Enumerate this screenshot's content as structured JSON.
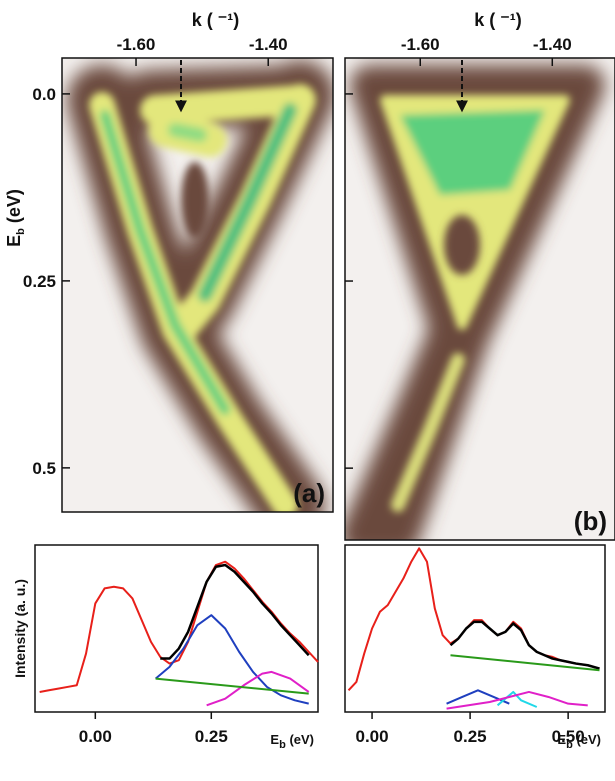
{
  "chart_data": [
    {
      "type": "image",
      "x_label": "k ( ⁻¹)",
      "y_label": {
        "main": "E",
        "sub": "b",
        "unit": " (eV)"
      },
      "panel_label": "(a)",
      "xlim": [
        -1.712,
        -1.302
      ],
      "ylim": [
        -0.048,
        0.559
      ],
      "xticks": [
        {
          "value": -1.6,
          "label": "-1.60"
        },
        {
          "value": -1.4,
          "label": "-1.40"
        }
      ],
      "yticks": [
        {
          "value": 0,
          "label": "0.0"
        },
        0.25,
        0.5
      ]
    },
    {
      "type": "image",
      "x_label": "k ( ⁻¹)",
      "panel_label": "(b)",
      "xlim": [
        -1.714,
        -1.305
      ],
      "ylim": [
        -0.048,
        0.596
      ],
      "xticks": [
        {
          "value": -1.6,
          "label": "-1.60"
        },
        {
          "value": -1.4,
          "label": "-1.40"
        }
      ],
      "yticks": [
        0,
        0.25,
        0.5
      ]
    },
    {
      "type": "line",
      "x_label": {
        "main": "E",
        "sub": "b",
        "unit": " (eV)"
      },
      "y_label": "Intensity (a. u.)",
      "xlim": [
        -0.13,
        0.48
      ],
      "ylim": [
        0,
        1
      ],
      "xticks": [
        {
          "value": 0,
          "label": "0.00"
        },
        0.25
      ],
      "series": [
        {
          "color": "#e8201a",
          "x": [
            -0.12,
            -0.1,
            -0.08,
            -0.06,
            -0.04,
            -0.02,
            0,
            0.02,
            0.04,
            0.06,
            0.08,
            0.1,
            0.12,
            0.14,
            0.16,
            0.18,
            0.2,
            0.22,
            0.24,
            0.26,
            0.28,
            0.3,
            0.32,
            0.34,
            0.36,
            0.38,
            0.4,
            0.42,
            0.44,
            0.46,
            0.48
          ],
          "values": [
            0.12,
            0.13,
            0.14,
            0.15,
            0.16,
            0.35,
            0.65,
            0.74,
            0.75,
            0.74,
            0.68,
            0.55,
            0.42,
            0.33,
            0.29,
            0.31,
            0.42,
            0.6,
            0.78,
            0.88,
            0.9,
            0.86,
            0.8,
            0.73,
            0.66,
            0.6,
            0.53,
            0.47,
            0.42,
            0.36,
            0.3
          ]
        },
        {
          "color": "#000000",
          "x": [
            0.14,
            0.16,
            0.18,
            0.2,
            0.22,
            0.24,
            0.26,
            0.28,
            0.3,
            0.32,
            0.34,
            0.36,
            0.38,
            0.4,
            0.42,
            0.44,
            0.46
          ],
          "values": [
            0.32,
            0.32,
            0.38,
            0.48,
            0.63,
            0.78,
            0.87,
            0.88,
            0.84,
            0.78,
            0.72,
            0.65,
            0.59,
            0.52,
            0.46,
            0.4,
            0.34
          ]
        },
        {
          "color": "#1f3fbf",
          "x": [
            0.13,
            0.16,
            0.19,
            0.22,
            0.25,
            0.28,
            0.31,
            0.34,
            0.37,
            0.4,
            0.43,
            0.46
          ],
          "values": [
            0.2,
            0.27,
            0.38,
            0.52,
            0.58,
            0.5,
            0.36,
            0.24,
            0.15,
            0.1,
            0.07,
            0.05
          ]
        },
        {
          "color": "#e020c8",
          "x": [
            0.24,
            0.28,
            0.32,
            0.36,
            0.38,
            0.42,
            0.46
          ],
          "values": [
            0.04,
            0.08,
            0.16,
            0.23,
            0.24,
            0.2,
            0.12
          ]
        },
        {
          "color": "#2a9a1a",
          "x": [
            0.13,
            0.46
          ],
          "values": [
            0.2,
            0.11
          ]
        }
      ]
    },
    {
      "type": "line",
      "x_label": {
        "main": "E",
        "sub": "b",
        "unit": " (eV)"
      },
      "xlim": [
        -0.069,
        0.594
      ],
      "ylim": [
        0,
        1
      ],
      "xticks": [
        {
          "value": 0,
          "label": "0.00"
        },
        0.25,
        {
          "value": 0.5,
          "label": "0.50"
        }
      ],
      "series": [
        {
          "color": "#e8201a",
          "x": [
            -0.06,
            -0.04,
            -0.02,
            0,
            0.02,
            0.04,
            0.06,
            0.08,
            0.1,
            0.12,
            0.14,
            0.16,
            0.18,
            0.2,
            0.22,
            0.24,
            0.26,
            0.28,
            0.3,
            0.32,
            0.34,
            0.36,
            0.38,
            0.4,
            0.42,
            0.44,
            0.46,
            0.48,
            0.5,
            0.52,
            0.55,
            0.58
          ],
          "values": [
            0.13,
            0.18,
            0.35,
            0.5,
            0.6,
            0.64,
            0.72,
            0.8,
            0.9,
            0.98,
            0.9,
            0.62,
            0.46,
            0.41,
            0.44,
            0.5,
            0.55,
            0.55,
            0.5,
            0.46,
            0.48,
            0.54,
            0.5,
            0.4,
            0.36,
            0.34,
            0.33,
            0.31,
            0.3,
            0.29,
            0.28,
            0.26
          ]
        },
        {
          "color": "#000000",
          "x": [
            0.2,
            0.22,
            0.24,
            0.26,
            0.28,
            0.3,
            0.32,
            0.34,
            0.36,
            0.38,
            0.4,
            0.42,
            0.44,
            0.46,
            0.48,
            0.5,
            0.52,
            0.55,
            0.58
          ],
          "values": [
            0.4,
            0.44,
            0.5,
            0.54,
            0.54,
            0.5,
            0.46,
            0.48,
            0.53,
            0.49,
            0.4,
            0.36,
            0.34,
            0.32,
            0.31,
            0.3,
            0.29,
            0.28,
            0.26
          ]
        },
        {
          "color": "#2a9a1a",
          "x": [
            0.2,
            0.58
          ],
          "values": [
            0.34,
            0.25
          ]
        },
        {
          "color": "#1f3fbf",
          "x": [
            0.19,
            0.23,
            0.27,
            0.31,
            0.35
          ],
          "values": [
            0.05,
            0.09,
            0.13,
            0.09,
            0.05
          ]
        },
        {
          "color": "#20d8e8",
          "x": [
            0.32,
            0.34,
            0.36,
            0.38,
            0.42
          ],
          "values": [
            0.04,
            0.08,
            0.12,
            0.07,
            0.03
          ]
        },
        {
          "color": "#e020c8",
          "x": [
            0.19,
            0.3,
            0.4,
            0.45,
            0.5,
            0.55
          ],
          "values": [
            0.02,
            0.06,
            0.12,
            0.09,
            0.05,
            0.04
          ]
        }
      ]
    }
  ]
}
